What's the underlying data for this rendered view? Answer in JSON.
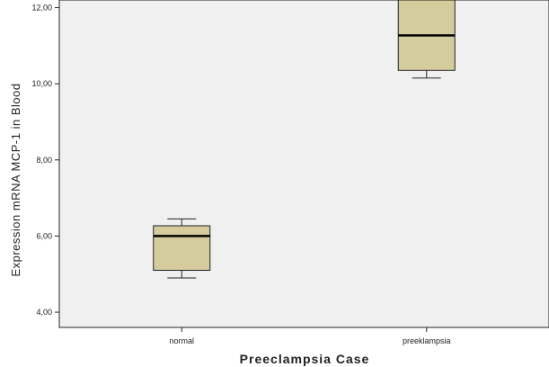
{
  "chart_data": {
    "type": "boxplot",
    "xlabel": "Preeclampsia Case",
    "ylabel": "Expression mRNA MCP-1 in Blood",
    "ylim": [
      3.6,
      12.2
    ],
    "yticks": [
      4,
      6,
      8,
      10,
      12
    ],
    "ytick_labels": [
      "4,00",
      "6,00",
      "8,00",
      "10,00",
      "12,00"
    ],
    "grid": false,
    "categories": [
      "normal",
      "preeklampsia"
    ],
    "boxes": [
      {
        "category": "normal",
        "whisker_low": 4.9,
        "q1": 5.1,
        "median": 6.0,
        "q3": 6.27,
        "whisker_high": 6.45
      },
      {
        "category": "preeklampsia",
        "whisker_low": 10.15,
        "q1": 10.35,
        "median": 11.27,
        "q3": 12.2,
        "whisker_high": 12.2
      }
    ],
    "colors": {
      "plot_background": "#f0f0f0",
      "box_fill": "#d4cc9c",
      "stroke": "#222222"
    }
  }
}
